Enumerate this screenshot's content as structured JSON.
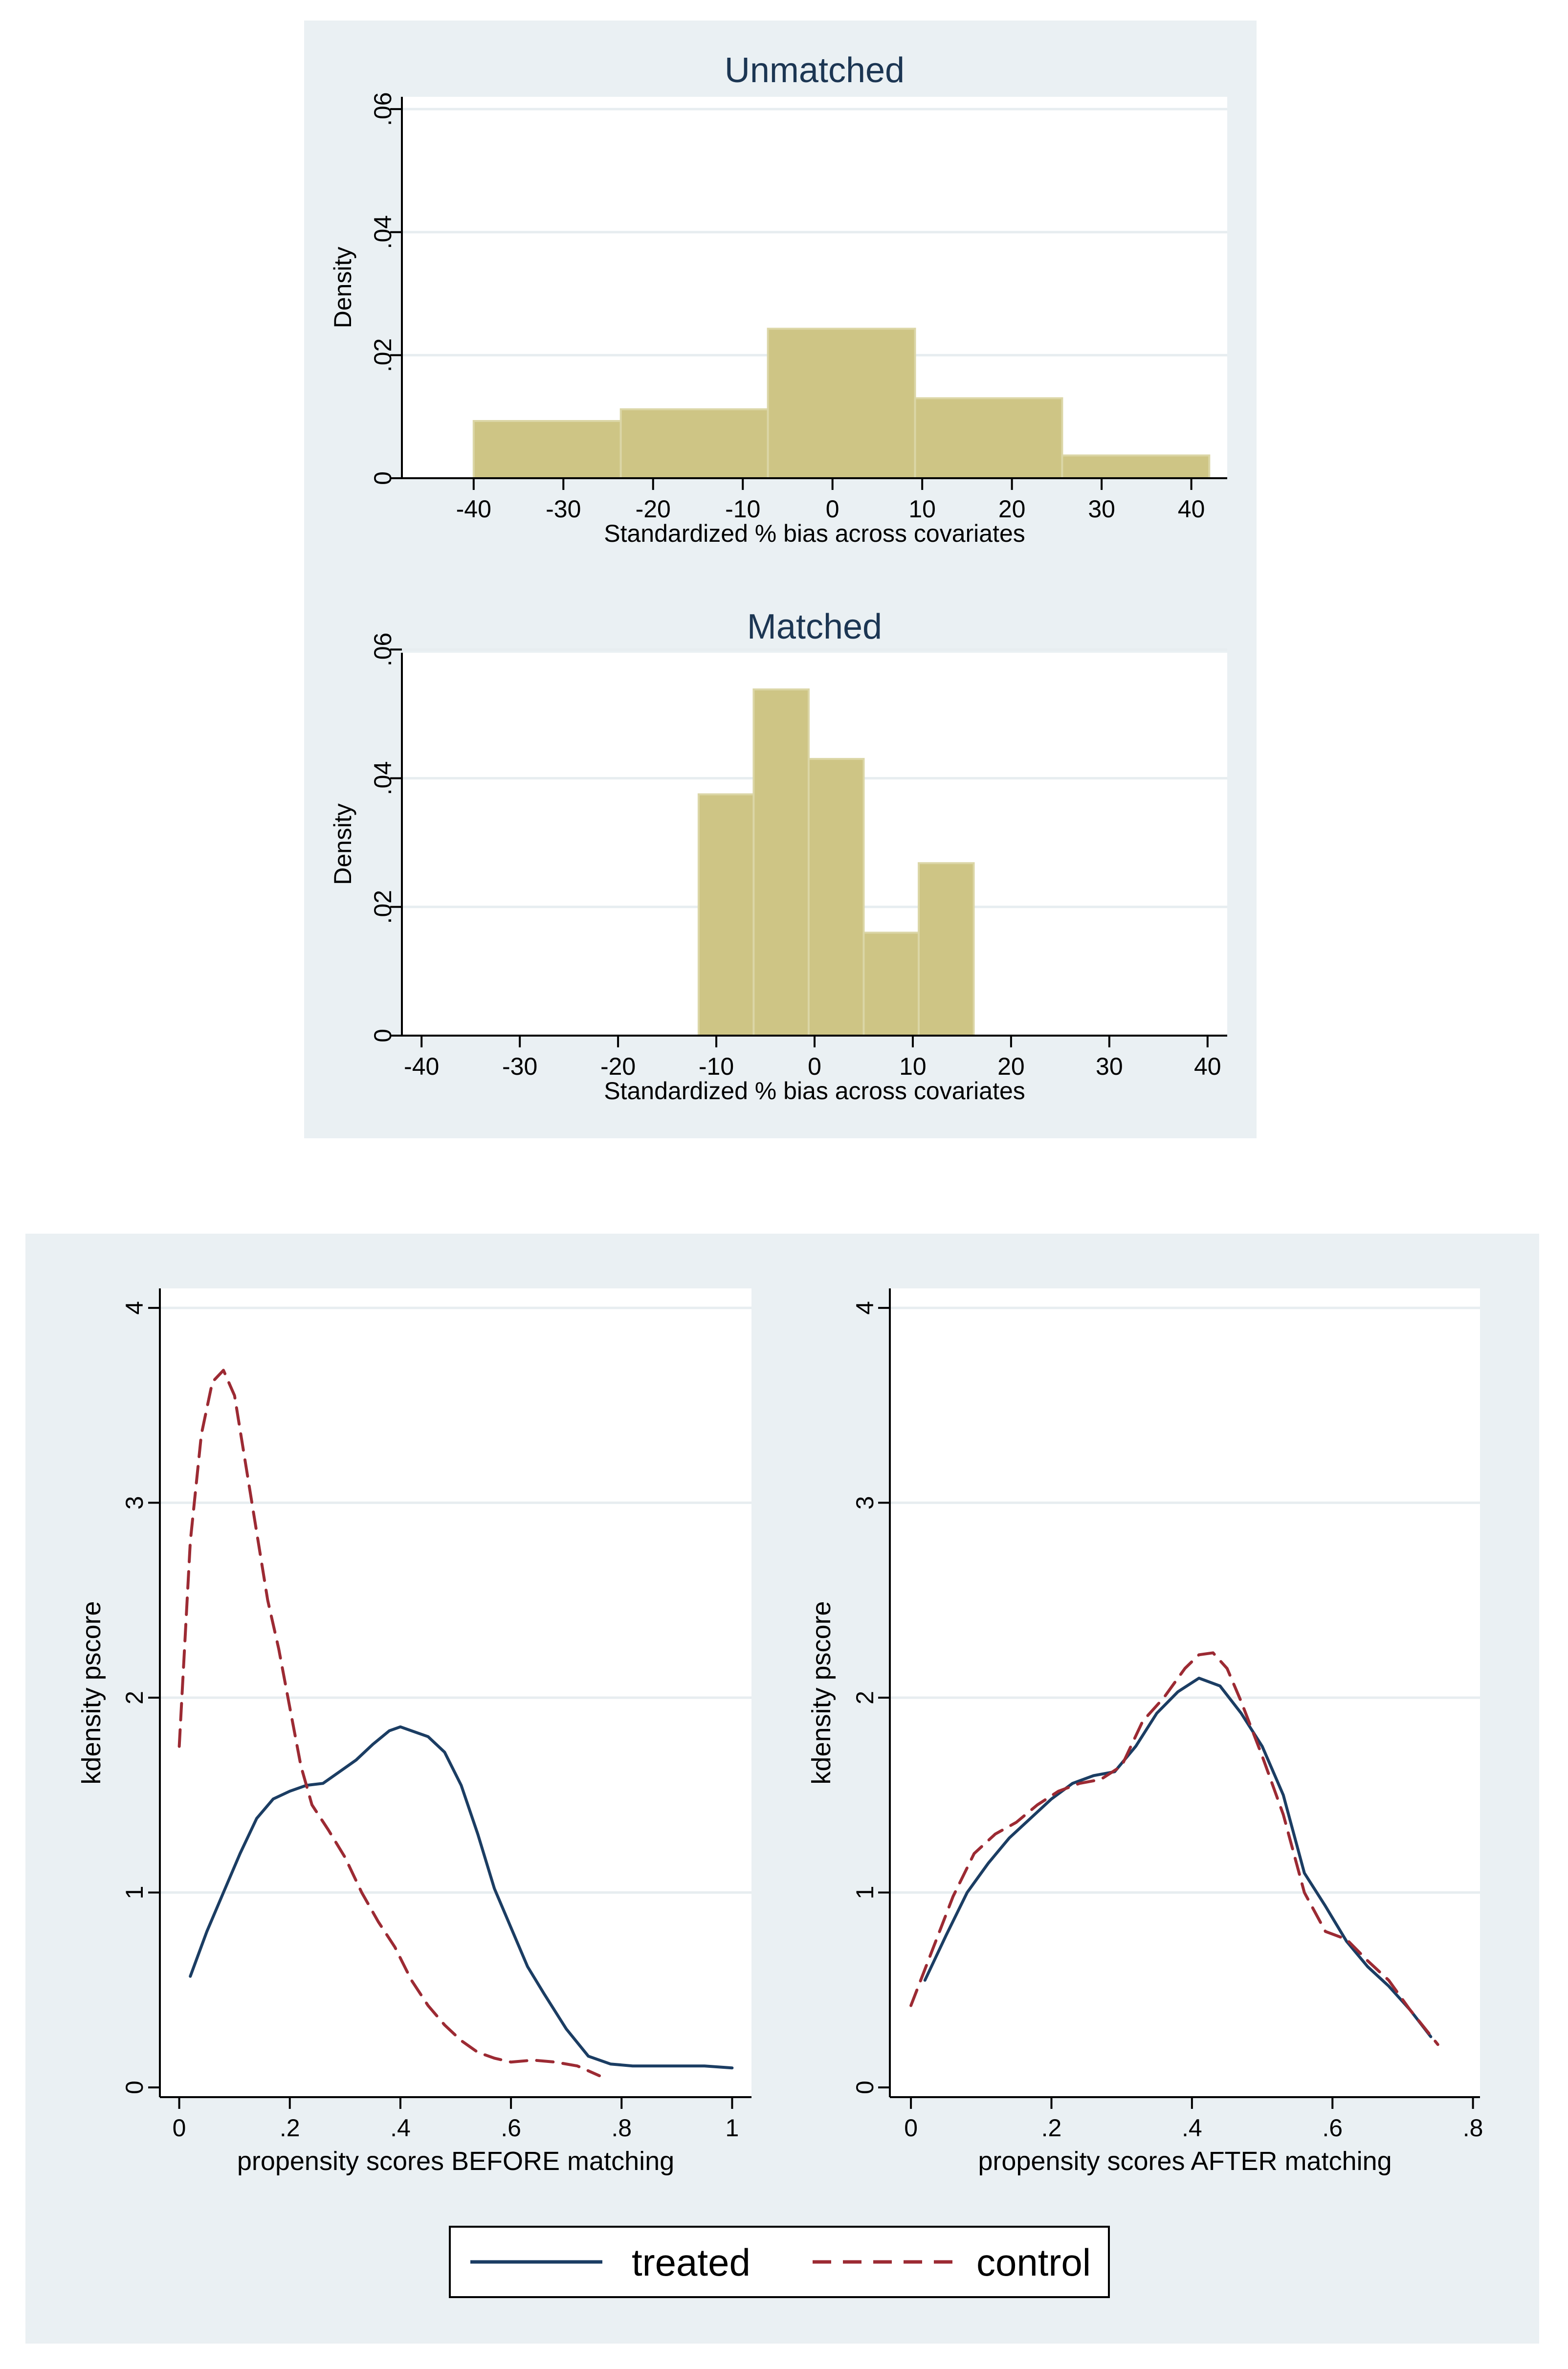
{
  "colors": {
    "panel_bg": "#eaf0f3",
    "plot_bg": "#ffffff",
    "grid": "#e7edf0",
    "bar_fill": "#cec585",
    "bar_edge": "#dbd6a6",
    "title": "#1c3653",
    "treated": "#1b3d63",
    "control": "#9c2a33",
    "axis": "#000000"
  },
  "legend": {
    "treated": "treated",
    "control": "control"
  },
  "chart_data": [
    {
      "id": "unmatched",
      "type": "bar",
      "title": "Unmatched",
      "xlabel": "Standardized % bias across covariates",
      "ylabel": "Density",
      "xlim": [
        -48,
        44
      ],
      "ylim": [
        0,
        0.062
      ],
      "xticks": [
        -40,
        -30,
        -20,
        -10,
        0,
        10,
        20,
        30,
        40
      ],
      "xtick_labels": [
        "-40",
        "-30",
        "-20",
        "-10",
        "0",
        "10",
        "20",
        "30",
        "40"
      ],
      "yticks": [
        0,
        0.02,
        0.04,
        0.06
      ],
      "ytick_labels": [
        "0",
        ".02",
        ".04",
        ".06"
      ],
      "bins": [
        {
          "x0": -40.0,
          "x1": -23.6,
          "density": 0.0093
        },
        {
          "x0": -23.6,
          "x1": -7.2,
          "density": 0.0112
        },
        {
          "x0": -7.2,
          "x1": 9.2,
          "density": 0.0243
        },
        {
          "x0": 9.2,
          "x1": 25.6,
          "density": 0.013
        },
        {
          "x0": 25.6,
          "x1": 42.0,
          "density": 0.0037
        }
      ]
    },
    {
      "id": "matched",
      "type": "bar",
      "title": "Matched",
      "xlabel": "Standardized % bias across covariates",
      "ylabel": "Density",
      "xlim": [
        -42,
        42
      ],
      "ylim": [
        0,
        0.0595
      ],
      "xticks": [
        -40,
        -30,
        -20,
        -10,
        0,
        10,
        20,
        30,
        40
      ],
      "xtick_labels": [
        "-40",
        "-30",
        "-20",
        "-10",
        "0",
        "10",
        "20",
        "30",
        "40"
      ],
      "yticks": [
        0,
        0.02,
        0.04,
        0.06
      ],
      "ytick_labels": [
        "0",
        ".02",
        ".04",
        ".06"
      ],
      "bins": [
        {
          "x0": -11.8,
          "x1": -6.2,
          "density": 0.0375
        },
        {
          "x0": -6.2,
          "x1": -0.6,
          "density": 0.0538
        },
        {
          "x0": -0.6,
          "x1": 5.0,
          "density": 0.043
        },
        {
          "x0": 5.0,
          "x1": 10.6,
          "density": 0.016
        },
        {
          "x0": 10.6,
          "x1": 16.2,
          "density": 0.0268
        }
      ]
    },
    {
      "id": "before",
      "type": "line",
      "xlabel": "propensity scores BEFORE matching",
      "ylabel": "kdensity pscore",
      "xlim": [
        -0.035,
        1.035
      ],
      "ylim": [
        -0.05,
        4.1
      ],
      "xticks": [
        0,
        0.2,
        0.4,
        0.6,
        0.8,
        1
      ],
      "xtick_labels": [
        "0",
        ".2",
        ".4",
        ".6",
        ".8",
        "1"
      ],
      "yticks": [
        0,
        1,
        2,
        3,
        4
      ],
      "ytick_labels": [
        "0",
        "1",
        "2",
        "3",
        "4"
      ],
      "series": [
        {
          "name": "treated",
          "style": "solid",
          "x": [
            0.02,
            0.05,
            0.08,
            0.11,
            0.14,
            0.17,
            0.2,
            0.23,
            0.26,
            0.29,
            0.32,
            0.35,
            0.38,
            0.4,
            0.42,
            0.45,
            0.48,
            0.51,
            0.54,
            0.57,
            0.6,
            0.63,
            0.66,
            0.7,
            0.74,
            0.78,
            0.82,
            0.85,
            0.9,
            0.95,
            1.0
          ],
          "y": [
            0.57,
            0.8,
            1.0,
            1.2,
            1.38,
            1.48,
            1.52,
            1.55,
            1.56,
            1.62,
            1.68,
            1.76,
            1.83,
            1.85,
            1.83,
            1.8,
            1.72,
            1.55,
            1.3,
            1.02,
            0.82,
            0.62,
            0.48,
            0.3,
            0.16,
            0.12,
            0.11,
            0.11,
            0.11,
            0.11,
            0.1
          ]
        },
        {
          "name": "control",
          "style": "dashed",
          "x": [
            0.0,
            0.02,
            0.04,
            0.06,
            0.08,
            0.1,
            0.12,
            0.14,
            0.16,
            0.18,
            0.2,
            0.22,
            0.24,
            0.27,
            0.3,
            0.33,
            0.36,
            0.39,
            0.42,
            0.45,
            0.48,
            0.51,
            0.54,
            0.57,
            0.6,
            0.64,
            0.68,
            0.72,
            0.76
          ],
          "y": [
            1.75,
            2.8,
            3.35,
            3.62,
            3.68,
            3.55,
            3.2,
            2.85,
            2.5,
            2.25,
            1.95,
            1.65,
            1.45,
            1.32,
            1.18,
            1.0,
            0.85,
            0.72,
            0.55,
            0.42,
            0.32,
            0.24,
            0.18,
            0.15,
            0.13,
            0.14,
            0.13,
            0.11,
            0.06
          ]
        }
      ]
    },
    {
      "id": "after",
      "type": "line",
      "xlabel": "propensity scores AFTER matching",
      "ylabel": "kdensity pscore",
      "xlim": [
        -0.03,
        0.81
      ],
      "ylim": [
        -0.05,
        4.1
      ],
      "xticks": [
        0,
        0.2,
        0.4,
        0.6,
        0.8
      ],
      "xtick_labels": [
        "0",
        ".2",
        ".4",
        ".6",
        ".8"
      ],
      "yticks": [
        0,
        1,
        2,
        3,
        4
      ],
      "ytick_labels": [
        "0",
        "1",
        "2",
        "3",
        "4"
      ],
      "series": [
        {
          "name": "treated",
          "style": "solid",
          "x": [
            0.02,
            0.05,
            0.08,
            0.11,
            0.14,
            0.17,
            0.2,
            0.23,
            0.26,
            0.29,
            0.32,
            0.35,
            0.38,
            0.41,
            0.44,
            0.47,
            0.5,
            0.53,
            0.56,
            0.59,
            0.62,
            0.65,
            0.68,
            0.71,
            0.74
          ],
          "y": [
            0.55,
            0.78,
            1.0,
            1.15,
            1.28,
            1.38,
            1.48,
            1.56,
            1.6,
            1.62,
            1.75,
            1.92,
            2.03,
            2.1,
            2.06,
            1.92,
            1.75,
            1.5,
            1.1,
            0.93,
            0.75,
            0.62,
            0.52,
            0.4,
            0.26
          ]
        },
        {
          "name": "control",
          "style": "dashed",
          "x": [
            0.0,
            0.03,
            0.06,
            0.09,
            0.12,
            0.15,
            0.18,
            0.21,
            0.24,
            0.27,
            0.3,
            0.33,
            0.36,
            0.39,
            0.41,
            0.43,
            0.45,
            0.47,
            0.5,
            0.53,
            0.56,
            0.59,
            0.62,
            0.65,
            0.68,
            0.71,
            0.75
          ],
          "y": [
            0.42,
            0.7,
            0.98,
            1.2,
            1.3,
            1.36,
            1.45,
            1.52,
            1.56,
            1.58,
            1.65,
            1.88,
            2.0,
            2.15,
            2.22,
            2.23,
            2.15,
            1.98,
            1.7,
            1.4,
            1.0,
            0.8,
            0.76,
            0.65,
            0.55,
            0.4,
            0.22
          ]
        }
      ]
    }
  ]
}
